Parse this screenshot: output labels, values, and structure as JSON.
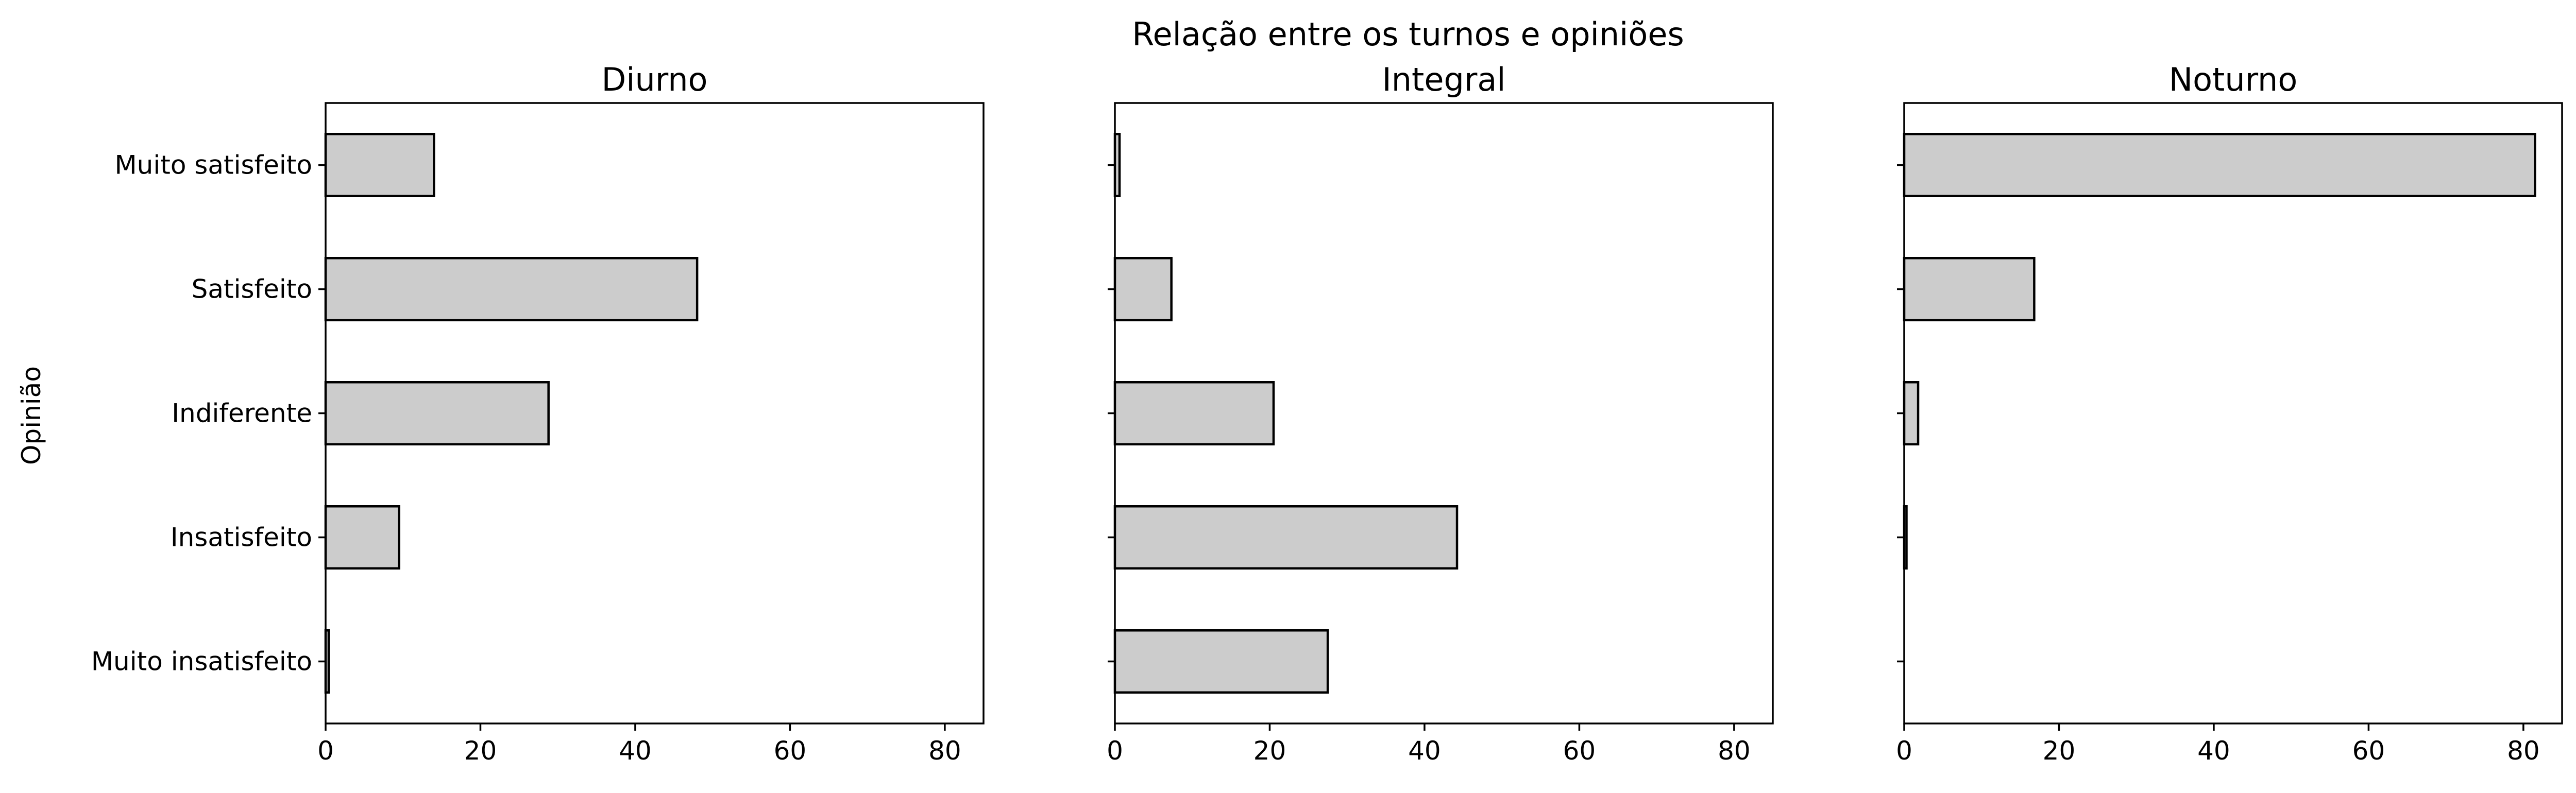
{
  "chart_data": {
    "type": "bar",
    "orientation": "horizontal",
    "suptitle": "Relação entre os turnos e opiniões",
    "ylabel": "Opinião",
    "xlabel": "",
    "categories": [
      "Muito satisfeito",
      "Satisfeito",
      "Indiferente",
      "Insatisfeito",
      "Muito insatisfeito"
    ],
    "xlim": [
      0,
      85
    ],
    "xticks": [
      0,
      20,
      40,
      60,
      80
    ],
    "bar_color": "#cccccc",
    "edge_color": "#000000",
    "grid": false,
    "legend": null,
    "series": [
      {
        "name": "Diurno",
        "values": [
          14,
          48,
          28.8,
          9.5,
          0.4
        ]
      },
      {
        "name": "Integral",
        "values": [
          0.6,
          7.3,
          20.5,
          44.2,
          27.5
        ]
      },
      {
        "name": "Noturno",
        "values": [
          81.5,
          16.8,
          1.8,
          0.3,
          0
        ]
      }
    ]
  }
}
